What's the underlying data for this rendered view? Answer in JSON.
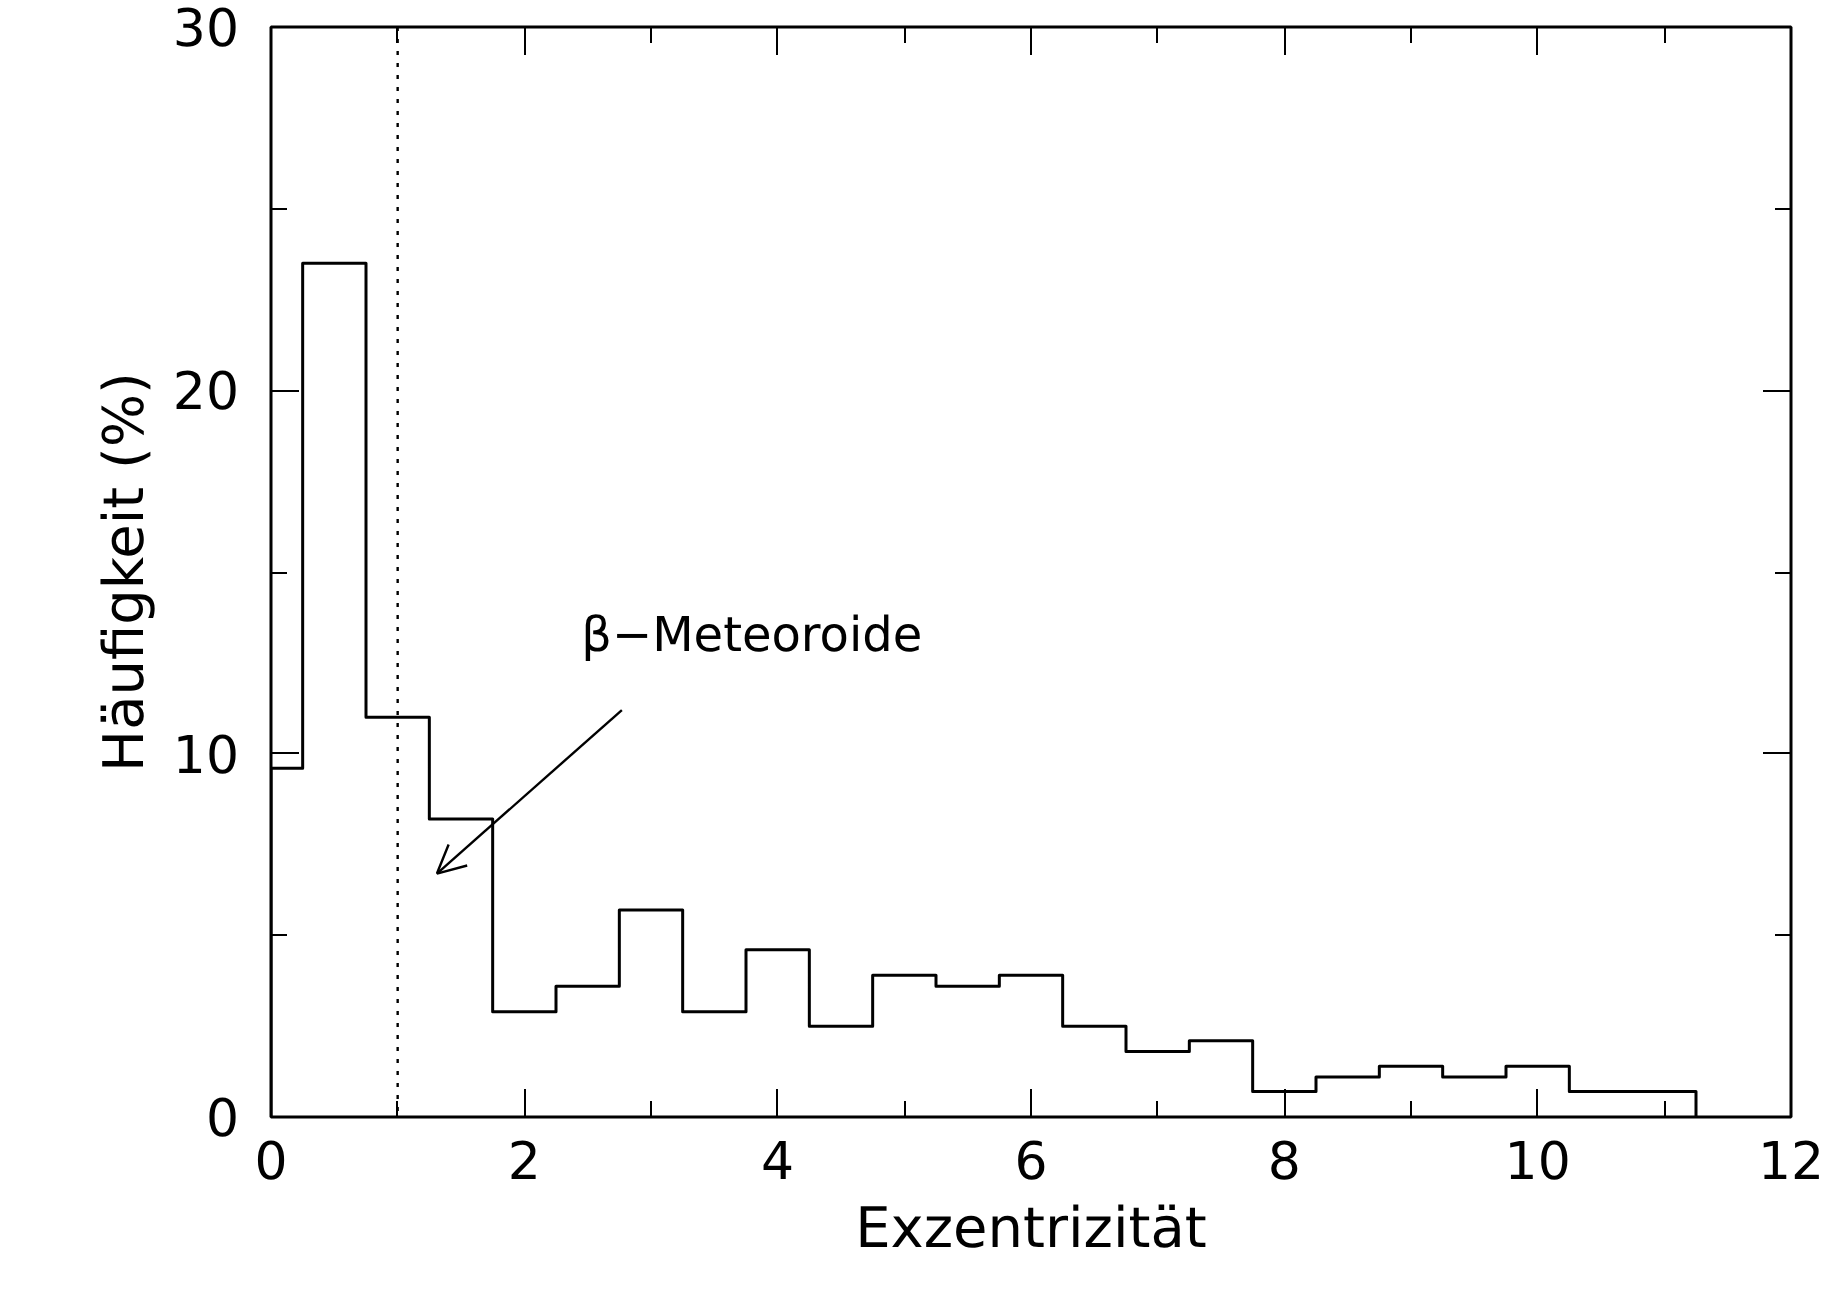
{
  "chart_data": {
    "type": "histogram",
    "xlabel": "Exzentrizität",
    "ylabel": "Häufigkeit (%)",
    "bins": [
      0,
      0.25,
      0.75,
      1.25,
      1.75,
      2.25,
      2.75,
      3.25,
      3.75,
      4.25,
      4.75,
      5.25,
      5.75,
      6.25,
      6.75,
      7.25,
      7.75,
      8.25,
      8.75,
      9.25,
      9.75,
      10.25,
      10.75,
      11.25
    ],
    "values": [
      9.6,
      23.5,
      11.0,
      8.2,
      2.9,
      3.6,
      5.7,
      2.9,
      4.6,
      2.5,
      3.9,
      3.6,
      3.9,
      2.5,
      1.8,
      2.1,
      0.7,
      1.1,
      1.4,
      1.1,
      1.4,
      0.7,
      0.7
    ],
    "color": "#000000",
    "xlim": [
      0,
      12
    ],
    "ylim": [
      0,
      30
    ],
    "xticks": [
      0,
      {
        "value": 1,
        "label": null
      },
      2,
      {
        "value": 3,
        "label": null
      },
      4,
      {
        "value": 5,
        "label": null
      },
      6,
      {
        "value": 7,
        "label": null
      },
      8,
      {
        "value": 9,
        "label": null
      },
      10,
      {
        "value": 11,
        "label": null
      },
      12
    ],
    "yticks": [
      0,
      {
        "value": 5,
        "label": null
      },
      10,
      {
        "value": 15,
        "label": null
      },
      20,
      {
        "value": 25,
        "label": null
      },
      30
    ],
    "ref_lines": [
      {
        "axis": "x",
        "value": 1,
        "line_style": "dotted",
        "color": "#000000"
      }
    ],
    "annotations": [
      "β−Meteoroide"
    ],
    "grid": false
  }
}
